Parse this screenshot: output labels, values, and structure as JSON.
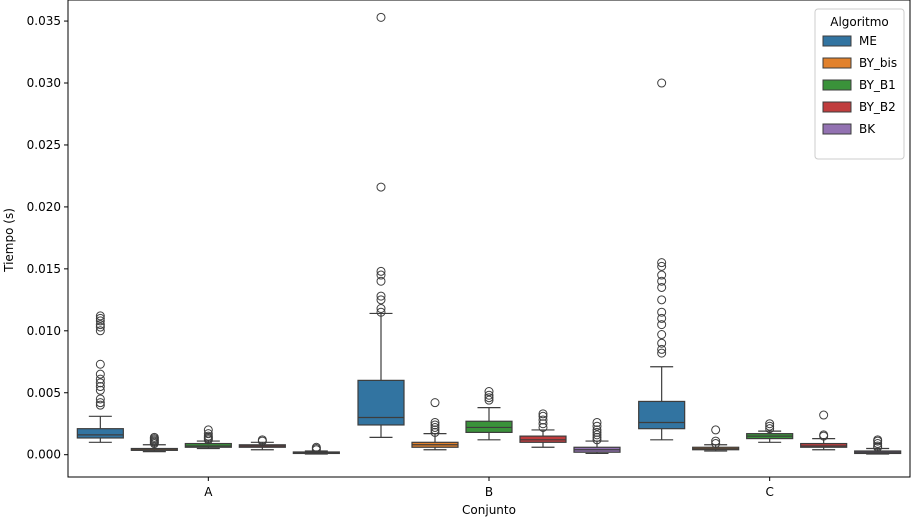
{
  "chart_data": {
    "type": "boxplot",
    "title": "",
    "xlabel": "Conjunto",
    "ylabel": "Tiempo (s)",
    "categories": [
      "A",
      "B",
      "C"
    ],
    "ylim": [
      -0.0018,
      0.0367
    ],
    "yticks": [
      0.0,
      0.005,
      0.01,
      0.015,
      0.02,
      0.025,
      0.03,
      0.035
    ],
    "ytick_labels": [
      "0.000",
      "0.005",
      "0.010",
      "0.015",
      "0.020",
      "0.025",
      "0.030",
      "0.035"
    ],
    "legend": {
      "title": "Algoritmo",
      "position": "top-right"
    },
    "series": [
      {
        "name": "ME",
        "color": "#3274a1",
        "boxes": [
          {
            "whislo": 0.001,
            "q1": 0.00135,
            "med": 0.0016,
            "q3": 0.0021,
            "whishi": 0.0031,
            "fliers": [
              0.004,
              0.0042,
              0.0045,
              0.0052,
              0.0055,
              0.0058,
              0.0061,
              0.0065,
              0.0073,
              0.01,
              0.0103,
              0.0105,
              0.0108,
              0.011,
              0.0112
            ]
          },
          {
            "whislo": 0.0014,
            "q1": 0.0024,
            "med": 0.003,
            "q3": 0.006,
            "whishi": 0.0114,
            "fliers": [
              0.0115,
              0.0118,
              0.0125,
              0.0128,
              0.014,
              0.0145,
              0.0148,
              0.0216,
              0.0353
            ]
          },
          {
            "whislo": 0.0012,
            "q1": 0.0021,
            "med": 0.0026,
            "q3": 0.0043,
            "whishi": 0.0071,
            "fliers": [
              0.0082,
              0.0085,
              0.009,
              0.0097,
              0.0105,
              0.011,
              0.0115,
              0.0125,
              0.0135,
              0.014,
              0.0145,
              0.0152,
              0.0155,
              0.03
            ]
          }
        ]
      },
      {
        "name": "BY_bis",
        "color": "#e1812c",
        "boxes": [
          {
            "whislo": 0.00025,
            "q1": 0.00035,
            "med": 0.0004,
            "q3": 0.0005,
            "whishi": 0.0008,
            "fliers": [
              0.0009,
              0.001,
              0.0011,
              0.0012,
              0.0013,
              0.0014
            ]
          },
          {
            "whislo": 0.0004,
            "q1": 0.0006,
            "med": 0.0008,
            "q3": 0.001,
            "whishi": 0.0017,
            "fliers": [
              0.0018,
              0.002,
              0.0022,
              0.0024,
              0.0026,
              0.0042
            ]
          },
          {
            "whislo": 0.0003,
            "q1": 0.0004,
            "med": 0.00048,
            "q3": 0.0006,
            "whishi": 0.0008,
            "fliers": [
              0.0009,
              0.0011,
              0.002
            ]
          }
        ]
      },
      {
        "name": "BY_B1",
        "color": "#3a923a",
        "boxes": [
          {
            "whislo": 0.0005,
            "q1": 0.0006,
            "med": 0.0007,
            "q3": 0.0009,
            "whishi": 0.0011,
            "fliers": [
              0.0012,
              0.0013,
              0.0014,
              0.0015,
              0.0017,
              0.002
            ]
          },
          {
            "whislo": 0.0012,
            "q1": 0.0018,
            "med": 0.0022,
            "q3": 0.0027,
            "whishi": 0.0038,
            "fliers": [
              0.0044,
              0.0046,
              0.0048,
              0.0051
            ]
          },
          {
            "whislo": 0.001,
            "q1": 0.0013,
            "med": 0.0015,
            "q3": 0.0017,
            "whishi": 0.0019,
            "fliers": [
              0.0021,
              0.0023,
              0.0025
            ]
          }
        ]
      },
      {
        "name": "BY_B2",
        "color": "#c03d3e",
        "boxes": [
          {
            "whislo": 0.0004,
            "q1": 0.0006,
            "med": 0.0007,
            "q3": 0.0008,
            "whishi": 0.001,
            "fliers": [
              0.0011,
              0.0012
            ]
          },
          {
            "whislo": 0.0006,
            "q1": 0.001,
            "med": 0.0012,
            "q3": 0.0015,
            "whishi": 0.002,
            "fliers": [
              0.0022,
              0.0025,
              0.0028,
              0.0031,
              0.0033
            ]
          },
          {
            "whislo": 0.0004,
            "q1": 0.0006,
            "med": 0.0007,
            "q3": 0.0009,
            "whishi": 0.0013,
            "fliers": [
              0.0015,
              0.0016,
              0.0032
            ]
          }
        ]
      },
      {
        "name": "BK",
        "color": "#9372b2",
        "boxes": [
          {
            "whislo": 5e-05,
            "q1": 0.0001,
            "med": 0.00015,
            "q3": 0.00022,
            "whishi": 0.0003,
            "fliers": [
              0.0004,
              0.0005,
              0.0006
            ]
          },
          {
            "whislo": 0.0001,
            "q1": 0.0002,
            "med": 0.0004,
            "q3": 0.0006,
            "whishi": 0.0011,
            "fliers": [
              0.0012,
              0.0014,
              0.0016,
              0.0018,
              0.002,
              0.0023,
              0.0026
            ]
          },
          {
            "whislo": 5e-05,
            "q1": 0.0001,
            "med": 0.0002,
            "q3": 0.0003,
            "whishi": 0.0005,
            "fliers": [
              0.0006,
              0.0007,
              0.0009,
              0.0011,
              0.0012
            ]
          }
        ]
      }
    ]
  }
}
